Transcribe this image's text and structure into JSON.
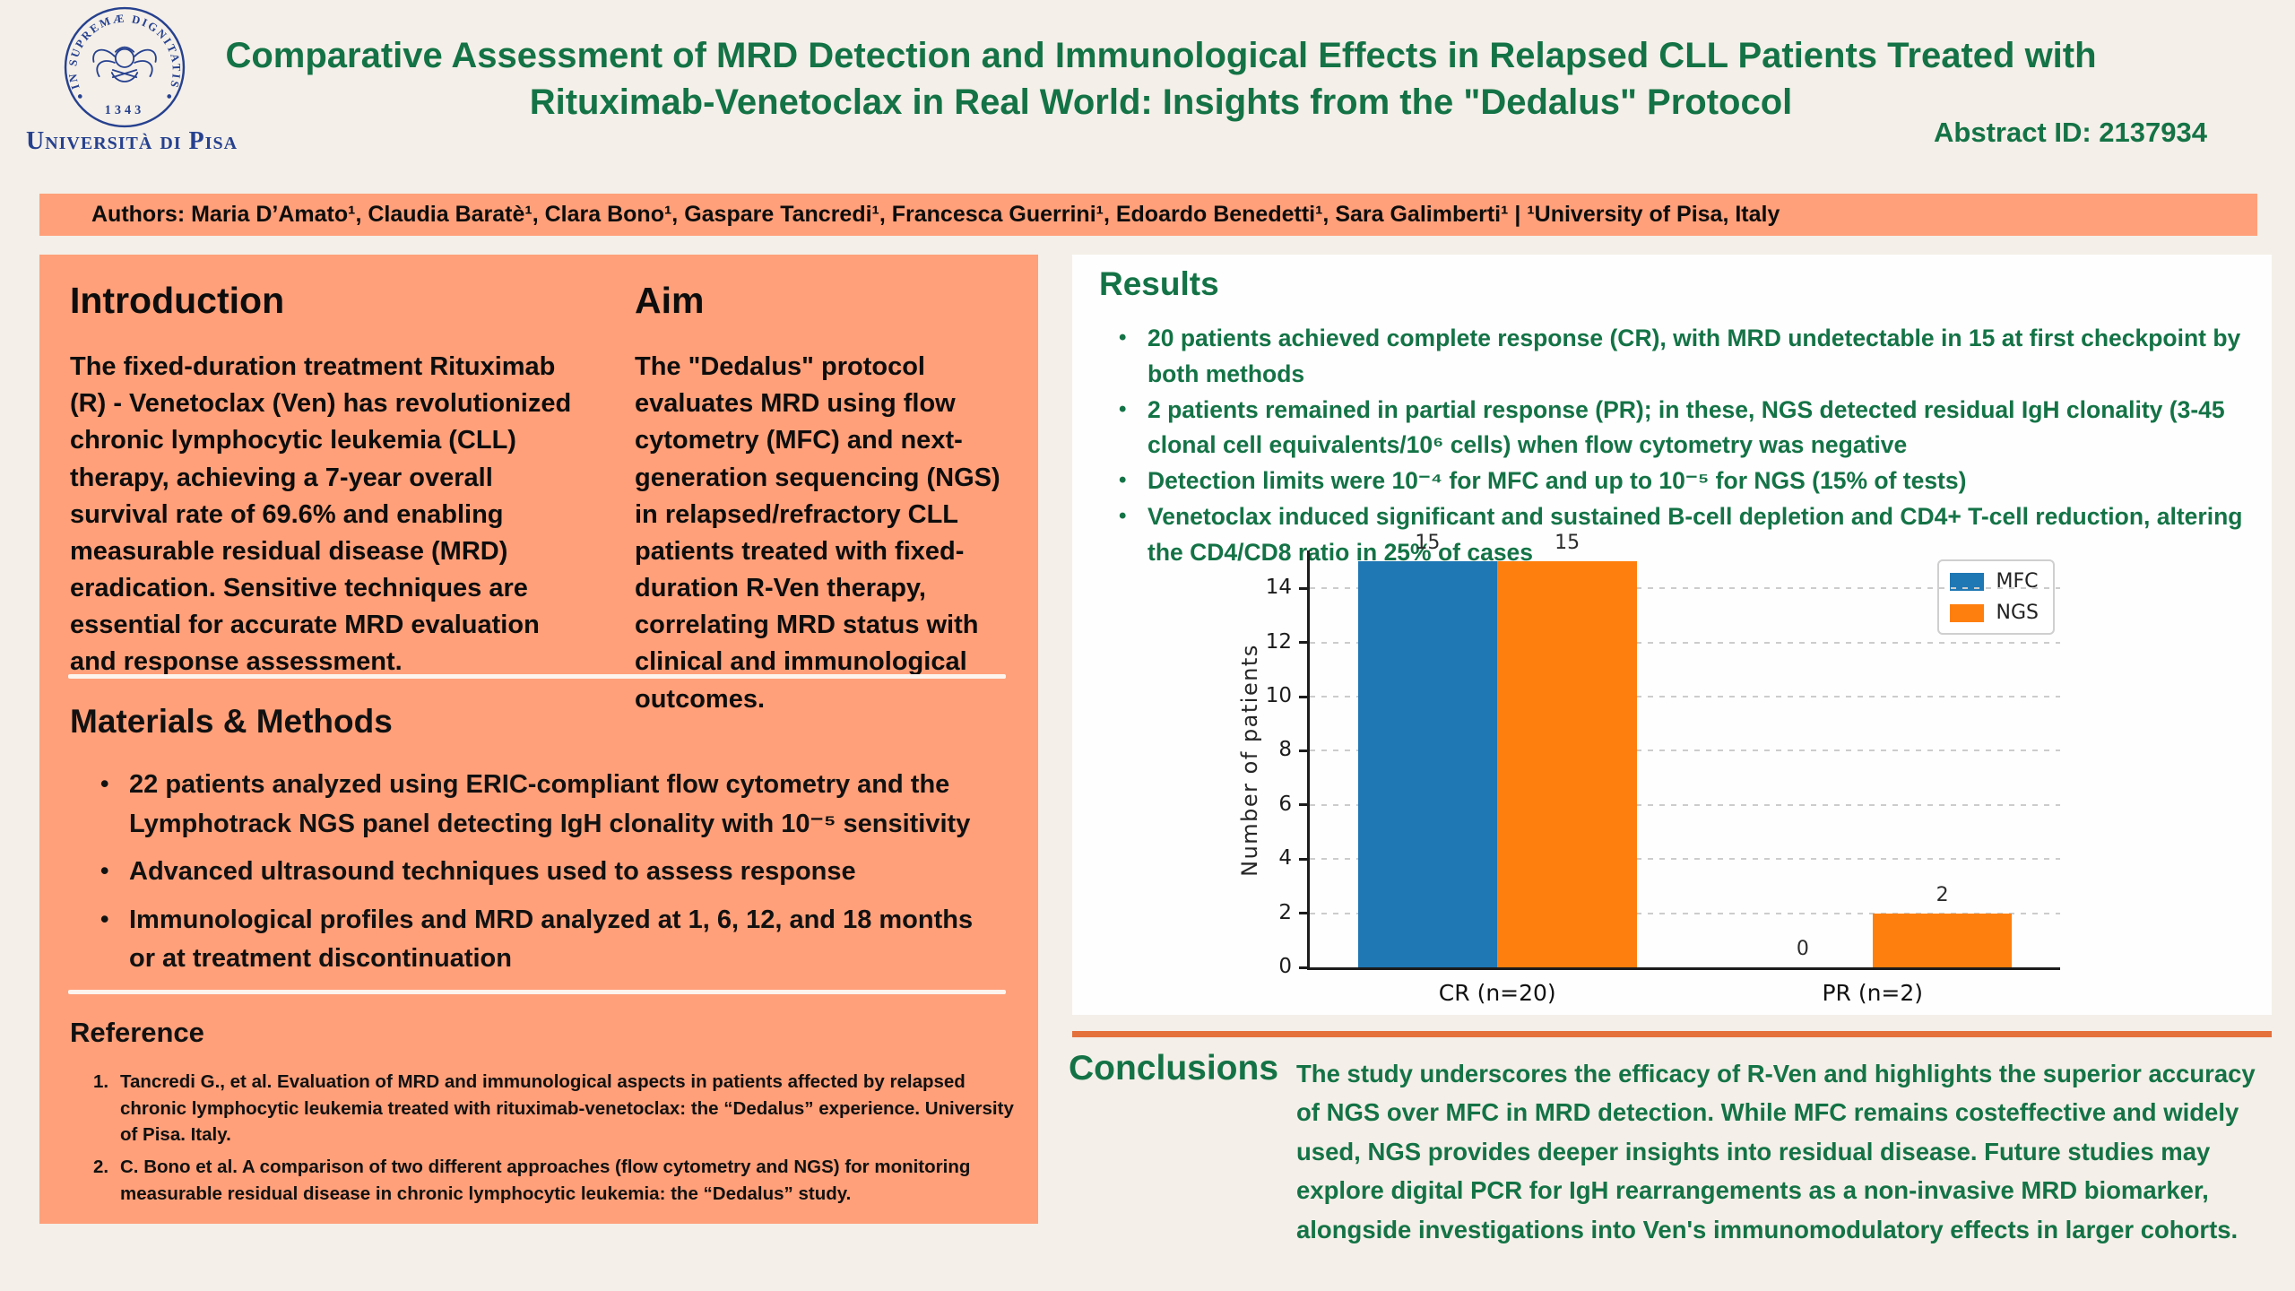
{
  "header": {
    "university_name": "Università di Pisa",
    "seal_motto": "IN SUPREMÆ DIGNITATIS",
    "seal_year": "1343",
    "title_lines": [
      "Comparative Assessment of MRD Detection and Immunological Effects in Relapsed CLL Patients Treated with",
      "Rituximab-Venetoclax in Real World: Insights from the \"Dedalus\" Protocol"
    ],
    "abstract_id": "Abstract ID: 2137934"
  },
  "authors_bar": {
    "text": "Authors: Maria D’Amato¹, Claudia Baratè¹, Clara Bono¹, Gaspare Tancredi¹, Francesca Guerrini¹, Edoardo Benedetti¹, Sara Galimberti¹ | ¹University of Pisa, Italy"
  },
  "introduction": {
    "heading": "Introduction",
    "body": "The fixed-duration treatment Rituximab (R) - Venetoclax (Ven) has revolutionized chronic lymphocytic leukemia (CLL) therapy, achieving a 7-year overall survival rate of 69.6% and enabling measurable residual disease (MRD) eradication. Sensitive techniques are essential for accurate MRD evaluation and response assessment."
  },
  "aim": {
    "heading": "Aim",
    "body": "The \"Dedalus\" protocol evaluates MRD using flow cytometry (MFC) and next-generation sequencing (NGS) in relapsed/refractory CLL patients treated with fixed-duration R-Ven therapy, correlating MRD status with clinical and immunological outcomes."
  },
  "materials_methods": {
    "heading": "Materials & Methods",
    "bullets": [
      "22 patients analyzed using ERIC-compliant flow cytometry and the Lymphotrack NGS panel detecting IgH clonality with 10⁻⁵ sensitivity",
      "Advanced ultrasound techniques used to assess response",
      "Immunological profiles and MRD analyzed at 1, 6, 12, and 18 months or at treatment discontinuation"
    ]
  },
  "reference": {
    "heading": "Reference",
    "items": [
      "Tancredi G., et al. Evaluation of MRD and immunological aspects in patients affected by relapsed chronic lymphocytic leukemia treated with rituximab-venetoclax: the “Dedalus” experience. University of Pisa. Italy.",
      "C. Bono et al. A comparison of two different approaches (flow cytometry and NGS) for monitoring measurable residual disease in chronic lymphocytic leukemia: the “Dedalus” study."
    ]
  },
  "results": {
    "heading": "Results",
    "bullets": [
      "20 patients achieved complete response (CR), with MRD undetectable in 15 at first checkpoint by both methods",
      "2 patients remained in partial response (PR); in these, NGS detected residual IgH clonality (3-45 clonal cell equivalents/10⁶ cells) when flow cytometry was negative",
      "Detection limits were 10⁻⁴ for MFC and up to 10⁻⁵ for NGS (15% of tests)",
      "Venetoclax induced significant and sustained B-cell depletion and CD4+ T-cell reduction, altering the CD4/CD8 ratio in 25% of cases"
    ]
  },
  "conclusions": {
    "heading": "Conclusions",
    "body": "The study underscores the efficacy of R-Ven and highlights the superior accuracy of NGS over MFC in MRD detection. While MFC remains costeffective and widely used, NGS provides deeper insights into residual disease. Future studies may explore digital PCR for IgH rearrangements as a non-invasive MRD biomarker, alongside investigations into Ven's immunomodulatory effects in larger cohorts.",
    "rule_color": "#e4703c"
  },
  "chart_data": {
    "type": "bar",
    "categories": [
      "CR (n=20)",
      "PR (n=2)"
    ],
    "series": [
      {
        "name": "MFC",
        "color": "#1f77b4",
        "values": [
          15,
          0
        ]
      },
      {
        "name": "NGS",
        "color": "#ff7f0e",
        "values": [
          15,
          2
        ]
      }
    ],
    "title": "",
    "xlabel": "",
    "ylabel": "Number of patients",
    "ylim": [
      0,
      15.4
    ],
    "yticks": [
      0,
      2,
      4,
      6,
      8,
      10,
      12,
      14
    ],
    "bar_value_labels": [
      [
        15,
        0
      ],
      [
        15,
        2
      ]
    ],
    "grid": "horizontal-dashed",
    "legend_position": "upper right"
  },
  "colors": {
    "background_cream": "#f4efe8",
    "panel_salmon": "#ffa07a",
    "accent_green": "#147346",
    "rule_orange": "#e4703c",
    "pisa_blue": "#26418f",
    "mfc_blue": "#1f77b4",
    "ngs_orange": "#ff7f0e"
  }
}
